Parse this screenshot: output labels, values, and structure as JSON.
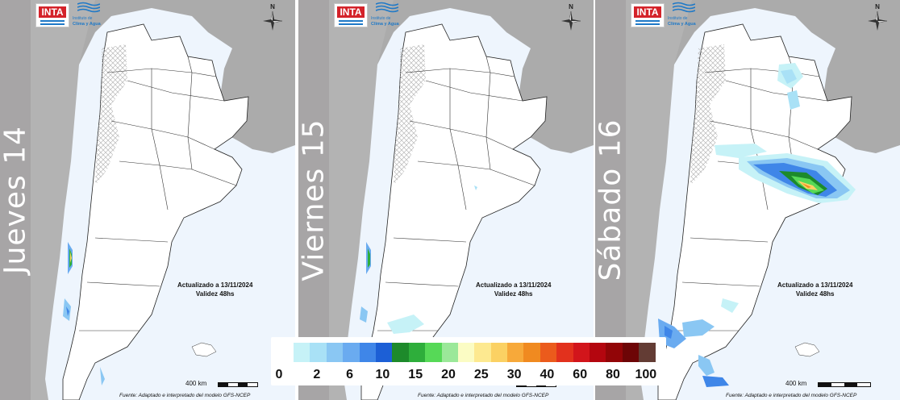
{
  "panels": [
    {
      "day_label": "Jueves 14",
      "updated": "Actualizado a 13/11/2024",
      "validity": "Validez 48hs",
      "scale_label": "400 km",
      "source": "Fuente: Adaptado e interpretado del modelo GFS-NCEP"
    },
    {
      "day_label": "Viernes 15",
      "updated": "Actualizado a 13/11/2024",
      "validity": "Validez 48hs",
      "scale_label": "400 km",
      "source": "Fuente: Adaptado e interpretado del modelo GFS-NCEP"
    },
    {
      "day_label": "Sábado 16",
      "updated": "Actualizado a 13/11/2024",
      "validity": "Validez 48hs",
      "scale_label": "400 km",
      "source": "Fuente: Adaptado e interpretado del modelo GFS-NCEP"
    }
  ],
  "logos": {
    "inta": "INTA",
    "ica_line1": "Instituto de",
    "ica_line2": "Clima y Agua"
  },
  "compass_label": "N",
  "icons": [
    "inta-logo",
    "clima-agua-logo",
    "north-arrow-compass-icon",
    "scale-bar"
  ],
  "legend": {
    "ticks": [
      "0",
      "2",
      "6",
      "10",
      "15",
      "20",
      "25",
      "30",
      "40",
      "60",
      "80",
      "100"
    ],
    "colors": [
      "#c6f2f7",
      "#a9e1f6",
      "#8ac7f3",
      "#6aabf0",
      "#3f86e8",
      "#1c5fd6",
      "#1d8a2b",
      "#2eae3b",
      "#56d957",
      "#9be899",
      "#fbfcc4",
      "#fde990",
      "#fbd163",
      "#f7a93a",
      "#f08a20",
      "#eb5b1c",
      "#e2311d",
      "#d2151b",
      "#b4060f",
      "#920507",
      "#6d0506",
      "#633c34"
    ],
    "tick_positions": [
      0,
      2,
      4,
      6,
      8,
      10,
      12,
      14,
      16,
      18,
      20,
      22
    ]
  }
}
